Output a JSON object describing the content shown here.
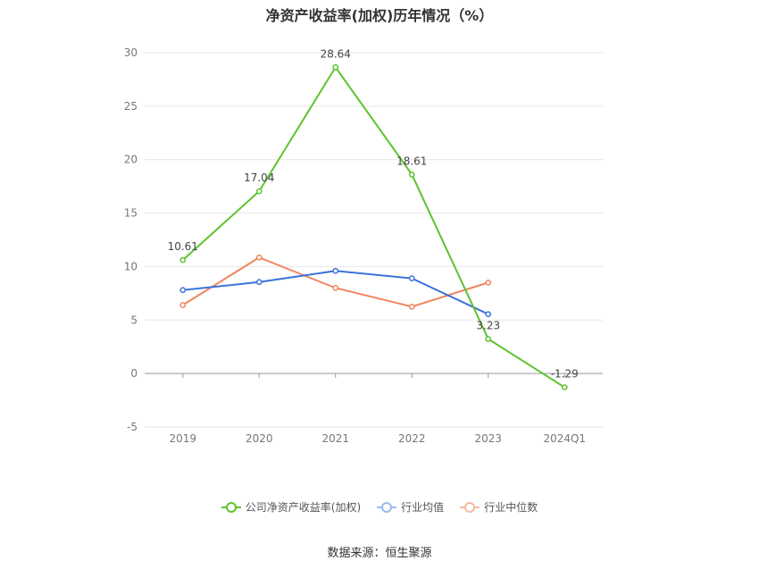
{
  "chart_data": {
    "type": "line",
    "title": "净资产收益率(加权)历年情况（%）",
    "categories": [
      "2019",
      "2020",
      "2021",
      "2022",
      "2023",
      "2024Q1"
    ],
    "ylim": [
      -5,
      30
    ],
    "yticks": [
      30,
      25,
      20,
      15,
      10,
      5,
      0,
      -5
    ],
    "grid": true,
    "legend_position": "bottom",
    "series": [
      {
        "name": "公司净资产收益率(加权)",
        "color": "#5cc42e",
        "values": [
          10.61,
          17.04,
          28.64,
          18.61,
          3.23,
          -1.29
        ],
        "labels": [
          "10.61",
          "17.04",
          "28.64",
          "18.61",
          "3.23",
          "-1.29"
        ]
      },
      {
        "name": "行业均值",
        "color": "#3a73d8",
        "values": [
          7.8,
          8.55,
          9.6,
          8.9,
          5.55,
          null
        ]
      },
      {
        "name": "行业中位数",
        "color": "#f0845e",
        "values": [
          6.4,
          10.85,
          8.0,
          6.25,
          8.5,
          null
        ]
      }
    ]
  },
  "legend": {
    "items": [
      {
        "label": "公司净资产收益率(加权)",
        "color": "#5cc42e"
      },
      {
        "label": "行业均值",
        "color": "#3a73d8"
      },
      {
        "label": "行业中位数",
        "color": "#f0845e"
      }
    ]
  },
  "source": "数据来源：恒生聚源"
}
